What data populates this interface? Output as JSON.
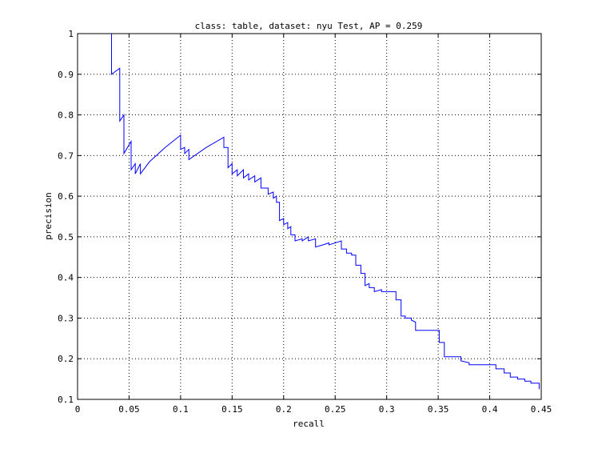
{
  "chart_data": {
    "type": "line",
    "title": "class: table, dataset: nyu Test, AP = 0.259",
    "xlabel": "recall",
    "ylabel": "precision",
    "xlim": [
      0,
      0.45
    ],
    "ylim": [
      0.1,
      1
    ],
    "grid": true,
    "xticks": [
      0,
      0.05,
      0.1,
      0.15,
      0.2,
      0.25,
      0.3,
      0.35,
      0.4,
      0.45
    ],
    "xtick_labels": [
      "0",
      "0.05",
      "0.1",
      "0.15",
      "0.2",
      "0.25",
      "0.3",
      "0.35",
      "0.4",
      "0.45"
    ],
    "yticks": [
      0.1,
      0.2,
      0.3,
      0.4,
      0.5,
      0.6,
      0.7,
      0.8,
      0.9,
      1
    ],
    "ytick_labels": [
      "0.1",
      "0.2",
      "0.3",
      "0.4",
      "0.5",
      "0.6",
      "0.7",
      "0.8",
      "0.9",
      "1"
    ],
    "series": [
      {
        "color": "#0000ff",
        "points": [
          [
            0.033,
            1.0
          ],
          [
            0.033,
            0.9
          ],
          [
            0.041,
            0.915
          ],
          [
            0.041,
            0.785
          ],
          [
            0.045,
            0.8
          ],
          [
            0.045,
            0.705
          ],
          [
            0.052,
            0.735
          ],
          [
            0.052,
            0.665
          ],
          [
            0.056,
            0.68
          ],
          [
            0.056,
            0.655
          ],
          [
            0.061,
            0.68
          ],
          [
            0.061,
            0.655
          ],
          [
            0.07,
            0.685
          ],
          [
            0.085,
            0.72
          ],
          [
            0.1,
            0.75
          ],
          [
            0.1,
            0.715
          ],
          [
            0.104,
            0.72
          ],
          [
            0.104,
            0.705
          ],
          [
            0.108,
            0.715
          ],
          [
            0.108,
            0.69
          ],
          [
            0.125,
            0.72
          ],
          [
            0.142,
            0.745
          ],
          [
            0.142,
            0.72
          ],
          [
            0.146,
            0.72
          ],
          [
            0.146,
            0.67
          ],
          [
            0.15,
            0.68
          ],
          [
            0.15,
            0.655
          ],
          [
            0.155,
            0.665
          ],
          [
            0.155,
            0.65
          ],
          [
            0.161,
            0.665
          ],
          [
            0.161,
            0.645
          ],
          [
            0.166,
            0.655
          ],
          [
            0.166,
            0.64
          ],
          [
            0.172,
            0.65
          ],
          [
            0.172,
            0.635
          ],
          [
            0.178,
            0.645
          ],
          [
            0.178,
            0.62
          ],
          [
            0.185,
            0.62
          ],
          [
            0.185,
            0.605
          ],
          [
            0.19,
            0.61
          ],
          [
            0.19,
            0.595
          ],
          [
            0.193,
            0.6
          ],
          [
            0.193,
            0.585
          ],
          [
            0.196,
            0.585
          ],
          [
            0.196,
            0.54
          ],
          [
            0.2,
            0.545
          ],
          [
            0.2,
            0.53
          ],
          [
            0.204,
            0.535
          ],
          [
            0.204,
            0.52
          ],
          [
            0.207,
            0.525
          ],
          [
            0.207,
            0.505
          ],
          [
            0.211,
            0.505
          ],
          [
            0.211,
            0.49
          ],
          [
            0.218,
            0.495
          ],
          [
            0.218,
            0.49
          ],
          [
            0.224,
            0.5
          ],
          [
            0.224,
            0.49
          ],
          [
            0.231,
            0.495
          ],
          [
            0.231,
            0.475
          ],
          [
            0.238,
            0.48
          ],
          [
            0.238,
            0.48
          ],
          [
            0.244,
            0.485
          ],
          [
            0.244,
            0.48
          ],
          [
            0.256,
            0.49
          ],
          [
            0.256,
            0.47
          ],
          [
            0.261,
            0.47
          ],
          [
            0.261,
            0.46
          ],
          [
            0.266,
            0.46
          ],
          [
            0.266,
            0.455
          ],
          [
            0.27,
            0.455
          ],
          [
            0.27,
            0.43
          ],
          [
            0.275,
            0.43
          ],
          [
            0.275,
            0.41
          ],
          [
            0.279,
            0.41
          ],
          [
            0.279,
            0.38
          ],
          [
            0.283,
            0.385
          ],
          [
            0.283,
            0.375
          ],
          [
            0.288,
            0.375
          ],
          [
            0.288,
            0.365
          ],
          [
            0.295,
            0.37
          ],
          [
            0.295,
            0.365
          ],
          [
            0.302,
            0.365
          ],
          [
            0.302,
            0.365
          ],
          [
            0.309,
            0.365
          ],
          [
            0.309,
            0.345
          ],
          [
            0.314,
            0.345
          ],
          [
            0.314,
            0.305
          ],
          [
            0.318,
            0.305
          ],
          [
            0.318,
            0.3
          ],
          [
            0.324,
            0.3
          ],
          [
            0.324,
            0.295
          ],
          [
            0.328,
            0.29
          ],
          [
            0.328,
            0.27
          ],
          [
            0.339,
            0.27
          ],
          [
            0.339,
            0.27
          ],
          [
            0.346,
            0.27
          ],
          [
            0.346,
            0.27
          ],
          [
            0.351,
            0.27
          ],
          [
            0.351,
            0.24
          ],
          [
            0.356,
            0.24
          ],
          [
            0.356,
            0.205
          ],
          [
            0.366,
            0.205
          ],
          [
            0.366,
            0.205
          ],
          [
            0.372,
            0.205
          ],
          [
            0.372,
            0.195
          ],
          [
            0.38,
            0.19
          ],
          [
            0.38,
            0.185
          ],
          [
            0.396,
            0.185
          ],
          [
            0.396,
            0.185
          ],
          [
            0.406,
            0.185
          ],
          [
            0.406,
            0.175
          ],
          [
            0.414,
            0.175
          ],
          [
            0.414,
            0.165
          ],
          [
            0.42,
            0.165
          ],
          [
            0.42,
            0.155
          ],
          [
            0.427,
            0.155
          ],
          [
            0.427,
            0.15
          ],
          [
            0.434,
            0.15
          ],
          [
            0.434,
            0.145
          ],
          [
            0.44,
            0.145
          ],
          [
            0.44,
            0.14
          ],
          [
            0.448,
            0.14
          ],
          [
            0.448,
            0.125
          ]
        ]
      }
    ]
  }
}
